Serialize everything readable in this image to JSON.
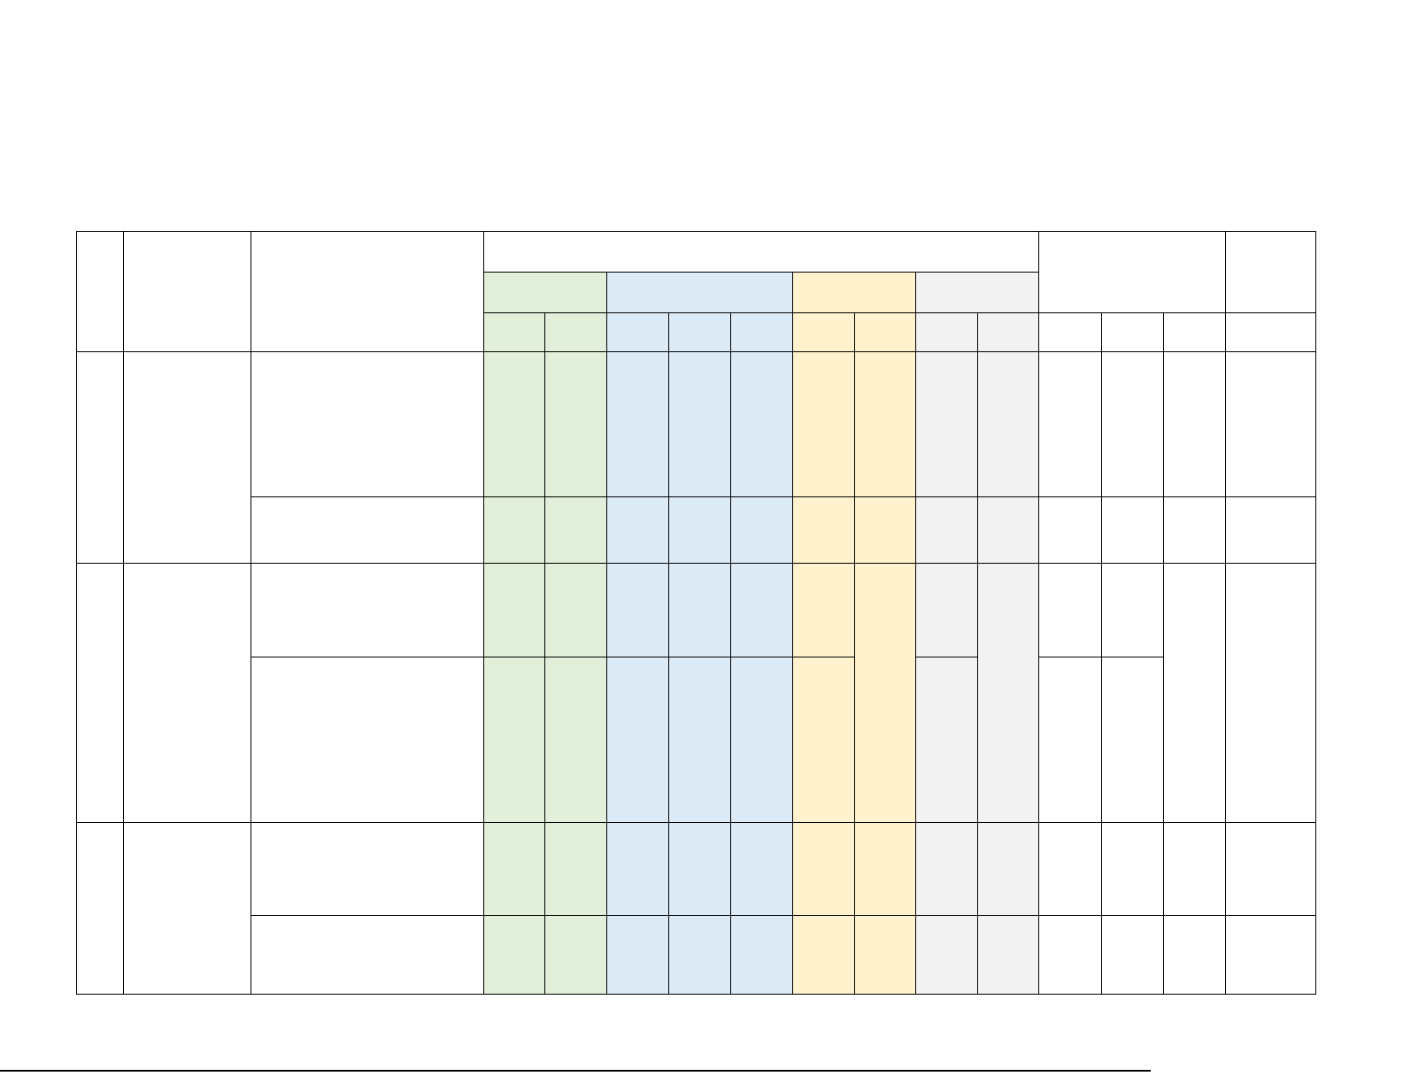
{
  "document": {
    "table": {
      "group_colors": {
        "group_1": "#e2efda",
        "group_2": "#ddebf7",
        "group_3": "#fff2cc",
        "group_4": "#f2f2f2"
      },
      "cells_text": "all cells empty"
    }
  }
}
